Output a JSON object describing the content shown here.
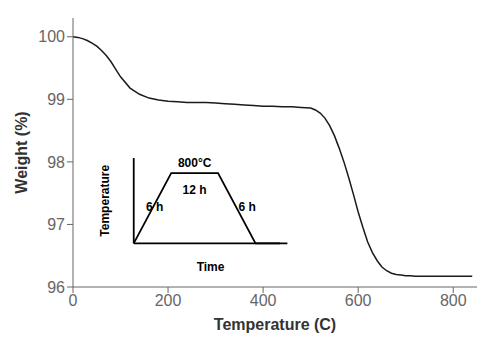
{
  "chart_data": {
    "type": "line",
    "xlabel": "Temperature (C)",
    "ylabel": "Weight (%)",
    "xlim": [
      0,
      850
    ],
    "ylim": [
      96,
      100.3
    ],
    "xticks": [
      0,
      200,
      400,
      600,
      800
    ],
    "yticks": [
      96,
      97,
      98,
      99,
      100
    ],
    "color": "#1a1a1a",
    "grid": false,
    "annotations": [
      "6 h",
      "800°C",
      "12 h",
      "6 h",
      "Time",
      "Temperature"
    ],
    "x": [
      0,
      10,
      20,
      30,
      40,
      50,
      60,
      70,
      80,
      90,
      100,
      120,
      140,
      160,
      180,
      200,
      220,
      240,
      260,
      280,
      300,
      320,
      340,
      360,
      380,
      400,
      420,
      440,
      460,
      480,
      500,
      510,
      520,
      530,
      540,
      550,
      560,
      570,
      580,
      590,
      600,
      610,
      620,
      630,
      640,
      650,
      660,
      670,
      680,
      690,
      700,
      710,
      720,
      730,
      740,
      750,
      760,
      770,
      780,
      790,
      800,
      820,
      840
    ],
    "values": [
      100.0,
      99.99,
      99.97,
      99.94,
      99.9,
      99.85,
      99.78,
      99.7,
      99.6,
      99.48,
      99.36,
      99.18,
      99.08,
      99.02,
      98.99,
      98.97,
      98.96,
      98.95,
      98.95,
      98.95,
      98.94,
      98.93,
      98.92,
      98.91,
      98.9,
      98.89,
      98.89,
      98.88,
      98.88,
      98.87,
      98.86,
      98.83,
      98.78,
      98.7,
      98.58,
      98.42,
      98.22,
      98.0,
      97.75,
      97.48,
      97.2,
      96.95,
      96.72,
      96.55,
      96.42,
      96.32,
      96.26,
      96.22,
      96.2,
      96.19,
      96.18,
      96.18,
      96.17,
      96.17,
      96.17,
      96.17,
      96.17,
      96.17,
      96.17,
      96.17,
      96.17,
      96.17,
      96.17
    ]
  }
}
